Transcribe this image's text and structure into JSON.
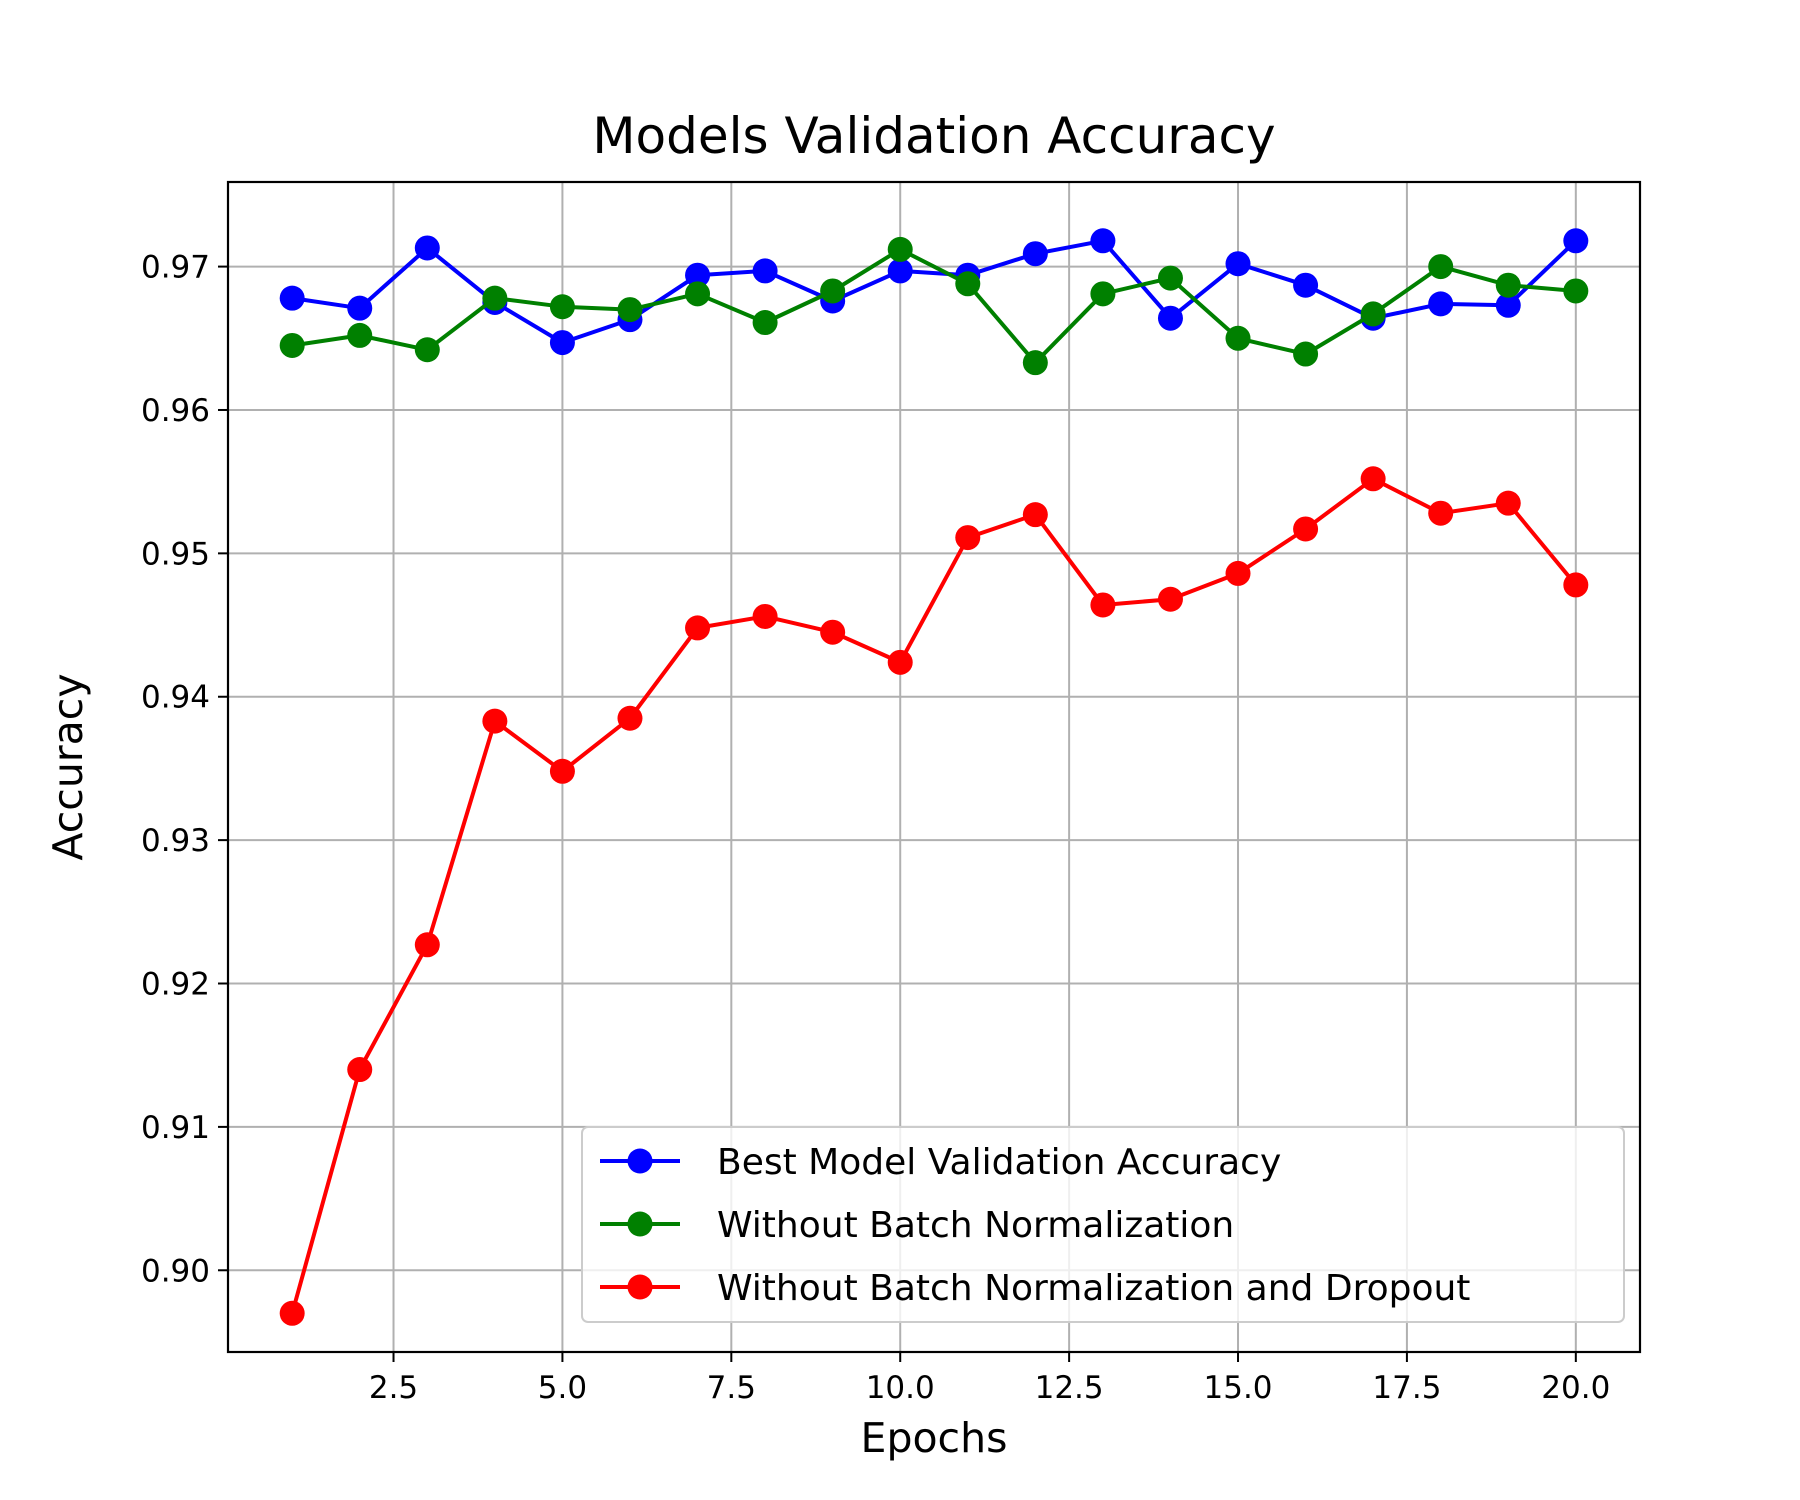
{
  "chart_data": {
    "type": "line",
    "title": "Models Validation Accuracy",
    "xlabel": "Epochs",
    "ylabel": "Accuracy",
    "xlim": [
      0.05,
      20.95
    ],
    "ylim": [
      0.8943,
      0.9759
    ],
    "x_ticks": [
      2.5,
      5.0,
      7.5,
      10.0,
      12.5,
      15.0,
      17.5,
      20.0
    ],
    "x_tick_labels": [
      "2.5",
      "5.0",
      "7.5",
      "10.0",
      "12.5",
      "15.0",
      "17.5",
      "20.0"
    ],
    "y_ticks": [
      0.9,
      0.91,
      0.92,
      0.93,
      0.94,
      0.95,
      0.96,
      0.97
    ],
    "y_tick_labels": [
      "0.90",
      "0.91",
      "0.92",
      "0.93",
      "0.94",
      "0.95",
      "0.96",
      "0.97"
    ],
    "grid": true,
    "legend_position": "lower-right",
    "x": [
      1,
      2,
      3,
      4,
      5,
      6,
      7,
      8,
      9,
      10,
      11,
      12,
      13,
      14,
      15,
      16,
      17,
      18,
      19,
      20
    ],
    "series": [
      {
        "name": "Best Model Validation Accuracy",
        "color": "#0000ff",
        "values": [
          0.9678,
          0.9671,
          0.9713,
          0.9675,
          0.9647,
          0.9663,
          0.9694,
          0.9697,
          0.9676,
          0.9697,
          0.9694,
          0.9709,
          0.9718,
          0.9664,
          0.9702,
          0.9687,
          0.9664,
          0.9674,
          0.9673,
          0.9718
        ]
      },
      {
        "name": "Without Batch Normalization",
        "color": "#008000",
        "values": [
          0.9645,
          0.9652,
          0.9642,
          0.9678,
          0.9672,
          0.967,
          0.9681,
          0.9661,
          0.9683,
          0.9712,
          0.9688,
          0.9633,
          0.9681,
          0.9692,
          0.965,
          0.9639,
          0.9667,
          0.97,
          0.9687,
          0.9683
        ]
      },
      {
        "name": "Without Batch Normalization and Dropout",
        "color": "#ff0000",
        "values": [
          0.897,
          0.914,
          0.9227,
          0.9383,
          0.9348,
          0.9385,
          0.9448,
          0.9456,
          0.9445,
          0.9424,
          0.9511,
          0.9527,
          0.9464,
          0.9468,
          0.9486,
          0.9517,
          0.9552,
          0.9528,
          0.9535,
          0.9478
        ]
      }
    ]
  }
}
